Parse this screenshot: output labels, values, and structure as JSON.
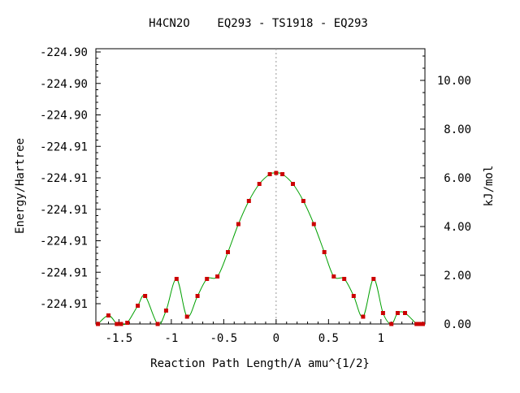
{
  "chart_data": {
    "type": "line",
    "title": "H4CN2O    EQ293 - TS1918 - EQ293",
    "xlabel": "Reaction Path Length/A amu^{1/2}",
    "ylabel_left": "Energy/Hartree",
    "ylabel_right": "kJ/mol",
    "xlim": [
      -1.72,
      1.42
    ],
    "right_ylim": [
      0,
      11.3
    ],
    "x_ticks": [
      -1.5,
      -1,
      -0.5,
      0,
      0.5,
      1
    ],
    "x_tick_labels": [
      "-1.5",
      "-1",
      "-0.5",
      "0",
      "0.5",
      "1"
    ],
    "left_tick_labels": [
      "-224.90",
      "-224.90",
      "-224.90",
      "-224.91",
      "-224.91",
      "-224.91",
      "-224.91",
      "-224.91",
      "-224.91"
    ],
    "right_ticks": [
      0,
      2,
      4,
      6,
      8,
      10
    ],
    "right_tick_labels": [
      "0.00",
      "2.00",
      "4.00",
      "6.00",
      "8.00",
      "10.00"
    ],
    "reference_line_x": 0,
    "grid": false,
    "line_color": "#00a000",
    "marker_color": "#cc0000",
    "points": [
      {
        "x": -1.7,
        "y": 0.0
      },
      {
        "x": -1.6,
        "y": 0.35
      },
      {
        "x": -1.52,
        "y": 0.0
      },
      {
        "x": -1.48,
        "y": 0.0
      },
      {
        "x": -1.42,
        "y": 0.05
      },
      {
        "x": -1.32,
        "y": 0.75
      },
      {
        "x": -1.25,
        "y": 1.15
      },
      {
        "x": -1.13,
        "y": 0.0
      },
      {
        "x": -1.05,
        "y": 0.55
      },
      {
        "x": -0.95,
        "y": 1.85
      },
      {
        "x": -0.85,
        "y": 0.3
      },
      {
        "x": -0.75,
        "y": 1.15
      },
      {
        "x": -0.66,
        "y": 1.85
      },
      {
        "x": -0.56,
        "y": 1.95
      },
      {
        "x": -0.46,
        "y": 2.95
      },
      {
        "x": -0.36,
        "y": 4.1
      },
      {
        "x": -0.26,
        "y": 5.05
      },
      {
        "x": -0.16,
        "y": 5.75
      },
      {
        "x": -0.06,
        "y": 6.15
      },
      {
        "x": 0.0,
        "y": 6.2
      },
      {
        "x": 0.06,
        "y": 6.15
      },
      {
        "x": 0.16,
        "y": 5.75
      },
      {
        "x": 0.26,
        "y": 5.05
      },
      {
        "x": 0.36,
        "y": 4.1
      },
      {
        "x": 0.46,
        "y": 2.95
      },
      {
        "x": 0.55,
        "y": 1.95
      },
      {
        "x": 0.65,
        "y": 1.85
      },
      {
        "x": 0.74,
        "y": 1.15
      },
      {
        "x": 0.83,
        "y": 0.3
      },
      {
        "x": 0.93,
        "y": 1.85
      },
      {
        "x": 1.02,
        "y": 0.45
      },
      {
        "x": 1.1,
        "y": 0.0
      },
      {
        "x": 1.16,
        "y": 0.45
      },
      {
        "x": 1.23,
        "y": 0.45
      },
      {
        "x": 1.34,
        "y": 0.0
      },
      {
        "x": 1.36,
        "y": 0.0
      },
      {
        "x": 1.38,
        "y": 0.0
      },
      {
        "x": 1.4,
        "y": 0.0
      }
    ]
  }
}
